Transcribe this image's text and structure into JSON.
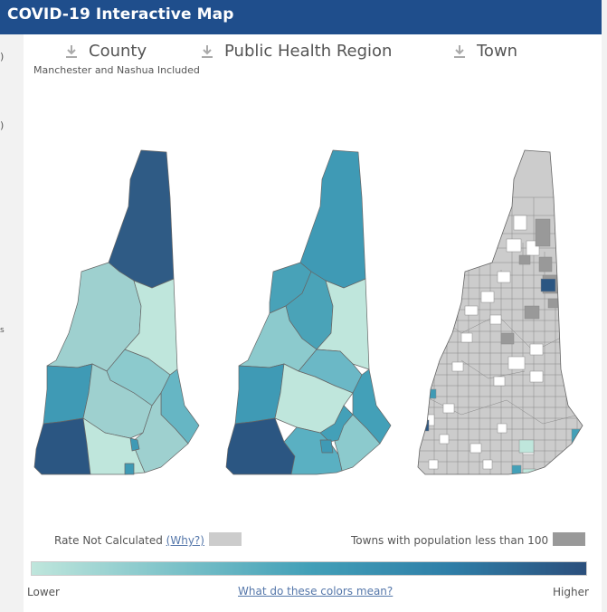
{
  "title": "COVID-19 Interactive Map",
  "left_strip_marks": [
    ")",
    ")",
    "s"
  ],
  "headers": [
    {
      "label": "County",
      "icon": "download-icon"
    },
    {
      "label": "Public Health Region",
      "icon": "download-icon"
    },
    {
      "label": "Town",
      "icon": "download-icon"
    }
  ],
  "county_subtitle": "Manchester and Nashua Included",
  "legend": {
    "rate_not_calculated": "Rate Not Calculated",
    "why_link": "(Why?)",
    "small_towns": "Towns with population less than 100",
    "low_label": "Lower",
    "high_label": "Higher",
    "colors_link": "What do these colors mean?",
    "no_rate_color": "#cccccc",
    "small_town_color": "#999999"
  },
  "scale_colors": [
    "#bfe6dc",
    "#7ec3c9",
    "#43a0b8",
    "#2f7fa8",
    "#2b4f7c"
  ]
}
